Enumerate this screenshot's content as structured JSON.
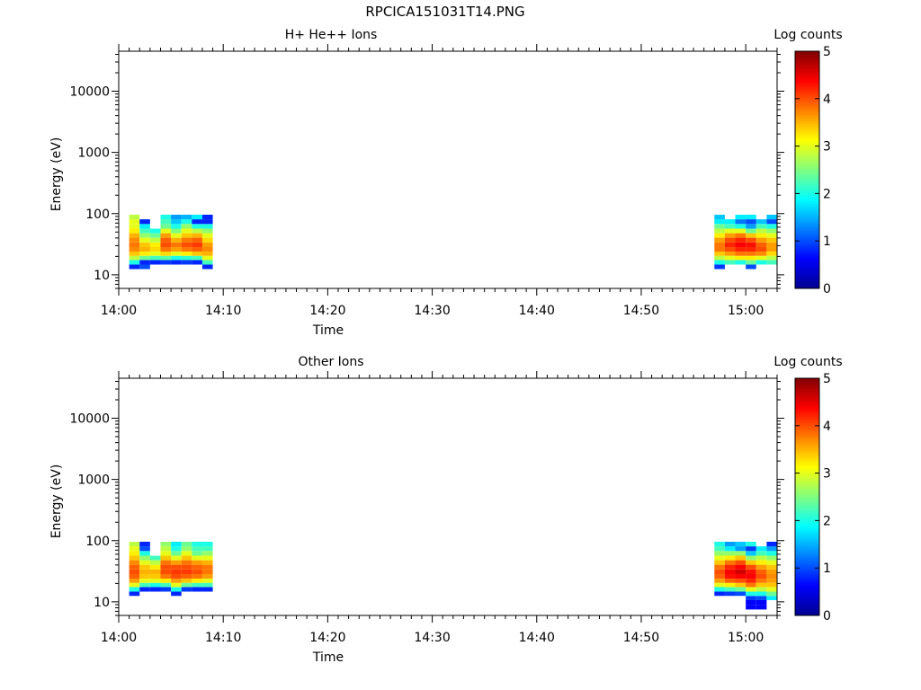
{
  "figure": {
    "title": "RPCICA151031T14.PNG"
  },
  "colorbar": {
    "label": "Log counts",
    "min": 0,
    "max": 5,
    "ticks": [
      "0",
      "1",
      "2",
      "3",
      "4",
      "5"
    ],
    "colormap": "jet",
    "colors": [
      "#00008f",
      "#0000ff",
      "#0080ff",
      "#00ffff",
      "#80ff80",
      "#ffff00",
      "#ff8000",
      "#ff0000",
      "#800000"
    ]
  },
  "chart_data": [
    {
      "type": "heatmap",
      "title": "H+ He++ Ions",
      "xlabel": "Time",
      "ylabel": "Energy (eV)",
      "y_scale": "log",
      "ylim": [
        6,
        45000
      ],
      "xlim": [
        "14:00",
        "15:03"
      ],
      "x_ticks": [
        "14:00",
        "14:10",
        "14:20",
        "14:30",
        "14:40",
        "14:50",
        "15:00"
      ],
      "y_ticks": [
        "10",
        "100",
        "1000",
        "10000"
      ],
      "energy_bins_eV": [
        13.5,
        16,
        19,
        22,
        26,
        31,
        37,
        44,
        52,
        62,
        74,
        88
      ],
      "columns": [
        {
          "time": "14:01.0",
          "log_counts": [
            0.8,
            2.0,
            2.8,
            3.4,
            3.7,
            3.8,
            3.7,
            3.5,
            3.2,
            3.0,
            3.0,
            2.8
          ]
        },
        {
          "time": "14:02.0",
          "log_counts": [
            1.0,
            0.8,
            2.4,
            3.2,
            3.5,
            3.4,
            3.0,
            2.6,
            2.2,
            1.8,
            0.8,
            null
          ]
        },
        {
          "time": "14:03.0",
          "log_counts": [
            null,
            0.8,
            2.2,
            3.0,
            3.3,
            3.2,
            2.8,
            2.4,
            2.0,
            null,
            null,
            null
          ]
        },
        {
          "time": "14:04.0",
          "log_counts": [
            null,
            0.9,
            2.3,
            3.3,
            3.8,
            4.0,
            3.9,
            3.6,
            3.0,
            2.4,
            2.2,
            2.0
          ]
        },
        {
          "time": "14:05.0",
          "log_counts": [
            null,
            0.8,
            2.0,
            3.0,
            3.6,
            3.8,
            3.5,
            3.0,
            2.5,
            2.0,
            1.6,
            1.4
          ]
        },
        {
          "time": "14:06.0",
          "log_counts": [
            null,
            0.9,
            2.1,
            3.2,
            3.8,
            4.0,
            3.8,
            3.4,
            3.0,
            2.6,
            2.0,
            1.5
          ]
        },
        {
          "time": "14:07.0",
          "log_counts": [
            null,
            0.8,
            2.2,
            3.4,
            3.9,
            4.1,
            3.9,
            3.5,
            2.8,
            2.0,
            0.8,
            1.8
          ]
        },
        {
          "time": "14:08.0",
          "log_counts": [
            0.8,
            2.2,
            3.0,
            3.5,
            3.7,
            3.6,
            3.3,
            3.0,
            2.6,
            2.0,
            0.8,
            0.8
          ]
        },
        {
          "time": "14:57.0",
          "log_counts": [
            0.9,
            2.0,
            2.8,
            3.4,
            3.8,
            3.8,
            3.6,
            3.2,
            2.8,
            2.4,
            1.8,
            1.6
          ]
        },
        {
          "time": "14:58.0",
          "log_counts": [
            null,
            2.2,
            3.0,
            3.6,
            4.0,
            4.2,
            4.0,
            3.6,
            3.0,
            2.2,
            1.8,
            null
          ]
        },
        {
          "time": "14:59.0",
          "log_counts": [
            null,
            2.0,
            3.2,
            3.8,
            4.2,
            4.4,
            4.2,
            3.8,
            3.0,
            2.0,
            1.2,
            1.8
          ]
        },
        {
          "time": "15:00.0",
          "log_counts": [
            1.0,
            2.4,
            3.2,
            3.8,
            4.2,
            4.3,
            4.0,
            3.4,
            2.4,
            1.4,
            1.0,
            1.8
          ]
        },
        {
          "time": "15:01.0",
          "log_counts": [
            null,
            2.0,
            3.0,
            3.7,
            4.0,
            3.9,
            3.6,
            3.2,
            2.8,
            2.2,
            1.6,
            null
          ]
        },
        {
          "time": "15:02.0",
          "log_counts": [
            null,
            2.2,
            2.8,
            3.3,
            3.6,
            3.6,
            3.4,
            3.0,
            2.6,
            2.0,
            1.0,
            1.6
          ]
        }
      ]
    },
    {
      "type": "heatmap",
      "title": "Other Ions",
      "xlabel": "Time",
      "ylabel": "Energy (eV)",
      "y_scale": "log",
      "ylim": [
        6,
        45000
      ],
      "xlim": [
        "14:00",
        "15:03"
      ],
      "x_ticks": [
        "14:00",
        "14:10",
        "14:20",
        "14:30",
        "14:40",
        "14:50",
        "15:00"
      ],
      "y_ticks": [
        "10",
        "100",
        "1000",
        "10000"
      ],
      "energy_bins_eV": [
        8.2,
        9.8,
        11.6,
        13.5,
        16,
        19,
        22,
        26,
        31,
        37,
        44,
        52,
        62,
        74,
        88
      ],
      "columns": [
        {
          "time": "14:01.0",
          "log_counts": [
            null,
            null,
            null,
            0.8,
            2.0,
            3.0,
            3.6,
            3.9,
            4.0,
            3.9,
            3.7,
            3.4,
            3.2,
            3.0,
            2.8
          ]
        },
        {
          "time": "14:02.0",
          "log_counts": [
            null,
            null,
            null,
            null,
            0.8,
            2.2,
            3.0,
            3.4,
            3.5,
            3.4,
            3.0,
            2.6,
            2.0,
            1.0,
            0.8
          ]
        },
        {
          "time": "14:03.0",
          "log_counts": [
            null,
            null,
            null,
            null,
            0.8,
            2.0,
            3.0,
            3.4,
            3.5,
            3.2,
            2.8,
            2.2,
            null,
            null,
            null
          ]
        },
        {
          "time": "14:04.0",
          "log_counts": [
            null,
            null,
            null,
            null,
            0.9,
            2.2,
            3.2,
            3.8,
            4.0,
            4.0,
            3.8,
            3.4,
            3.0,
            2.8,
            2.6
          ]
        },
        {
          "time": "14:05.0",
          "log_counts": [
            null,
            null,
            null,
            0.8,
            2.0,
            3.0,
            3.6,
            4.0,
            4.1,
            4.0,
            3.6,
            3.0,
            2.4,
            2.0,
            1.8
          ]
        },
        {
          "time": "14:06.0",
          "log_counts": [
            null,
            null,
            null,
            null,
            0.9,
            2.4,
            3.4,
            3.9,
            4.1,
            4.0,
            3.8,
            3.4,
            3.0,
            2.6,
            2.4
          ]
        },
        {
          "time": "14:07.0",
          "log_counts": [
            null,
            null,
            null,
            null,
            0.8,
            2.2,
            3.2,
            3.8,
            4.0,
            3.9,
            3.6,
            3.0,
            2.4,
            2.2,
            2.0
          ]
        },
        {
          "time": "14:08.0",
          "log_counts": [
            null,
            null,
            null,
            null,
            0.8,
            2.2,
            3.0,
            3.6,
            3.8,
            3.8,
            3.5,
            3.0,
            2.6,
            2.2,
            2.0
          ]
        },
        {
          "time": "14:57.0",
          "log_counts": [
            null,
            null,
            null,
            0.8,
            2.0,
            3.0,
            3.6,
            3.9,
            4.0,
            3.8,
            3.4,
            3.0,
            2.6,
            2.2,
            2.0
          ]
        },
        {
          "time": "14:58.0",
          "log_counts": [
            null,
            null,
            null,
            0.9,
            2.2,
            3.2,
            3.9,
            4.3,
            4.4,
            4.2,
            3.8,
            3.2,
            2.6,
            1.8,
            1.4
          ]
        },
        {
          "time": "14:59.0",
          "log_counts": [
            null,
            null,
            null,
            1.0,
            2.4,
            3.4,
            4.0,
            4.4,
            4.6,
            4.4,
            4.0,
            3.4,
            2.6,
            1.4,
            1.6
          ]
        },
        {
          "time": "15:00.0",
          "log_counts": [
            0.6,
            0.6,
            0.9,
            2.0,
            3.0,
            3.8,
            4.2,
            4.4,
            4.3,
            4.0,
            3.4,
            2.6,
            1.6,
            0.9,
            2.0
          ]
        },
        {
          "time": "15:01.0",
          "log_counts": [
            0.6,
            0.6,
            1.0,
            2.0,
            2.8,
            3.4,
            3.8,
            4.0,
            3.9,
            3.6,
            3.2,
            2.8,
            2.2,
            1.8,
            null
          ]
        },
        {
          "time": "15:02.0",
          "log_counts": [
            null,
            null,
            1.8,
            2.4,
            3.0,
            3.4,
            3.6,
            3.7,
            3.6,
            3.4,
            3.0,
            2.6,
            2.0,
            1.4,
            0.8
          ]
        }
      ]
    }
  ]
}
